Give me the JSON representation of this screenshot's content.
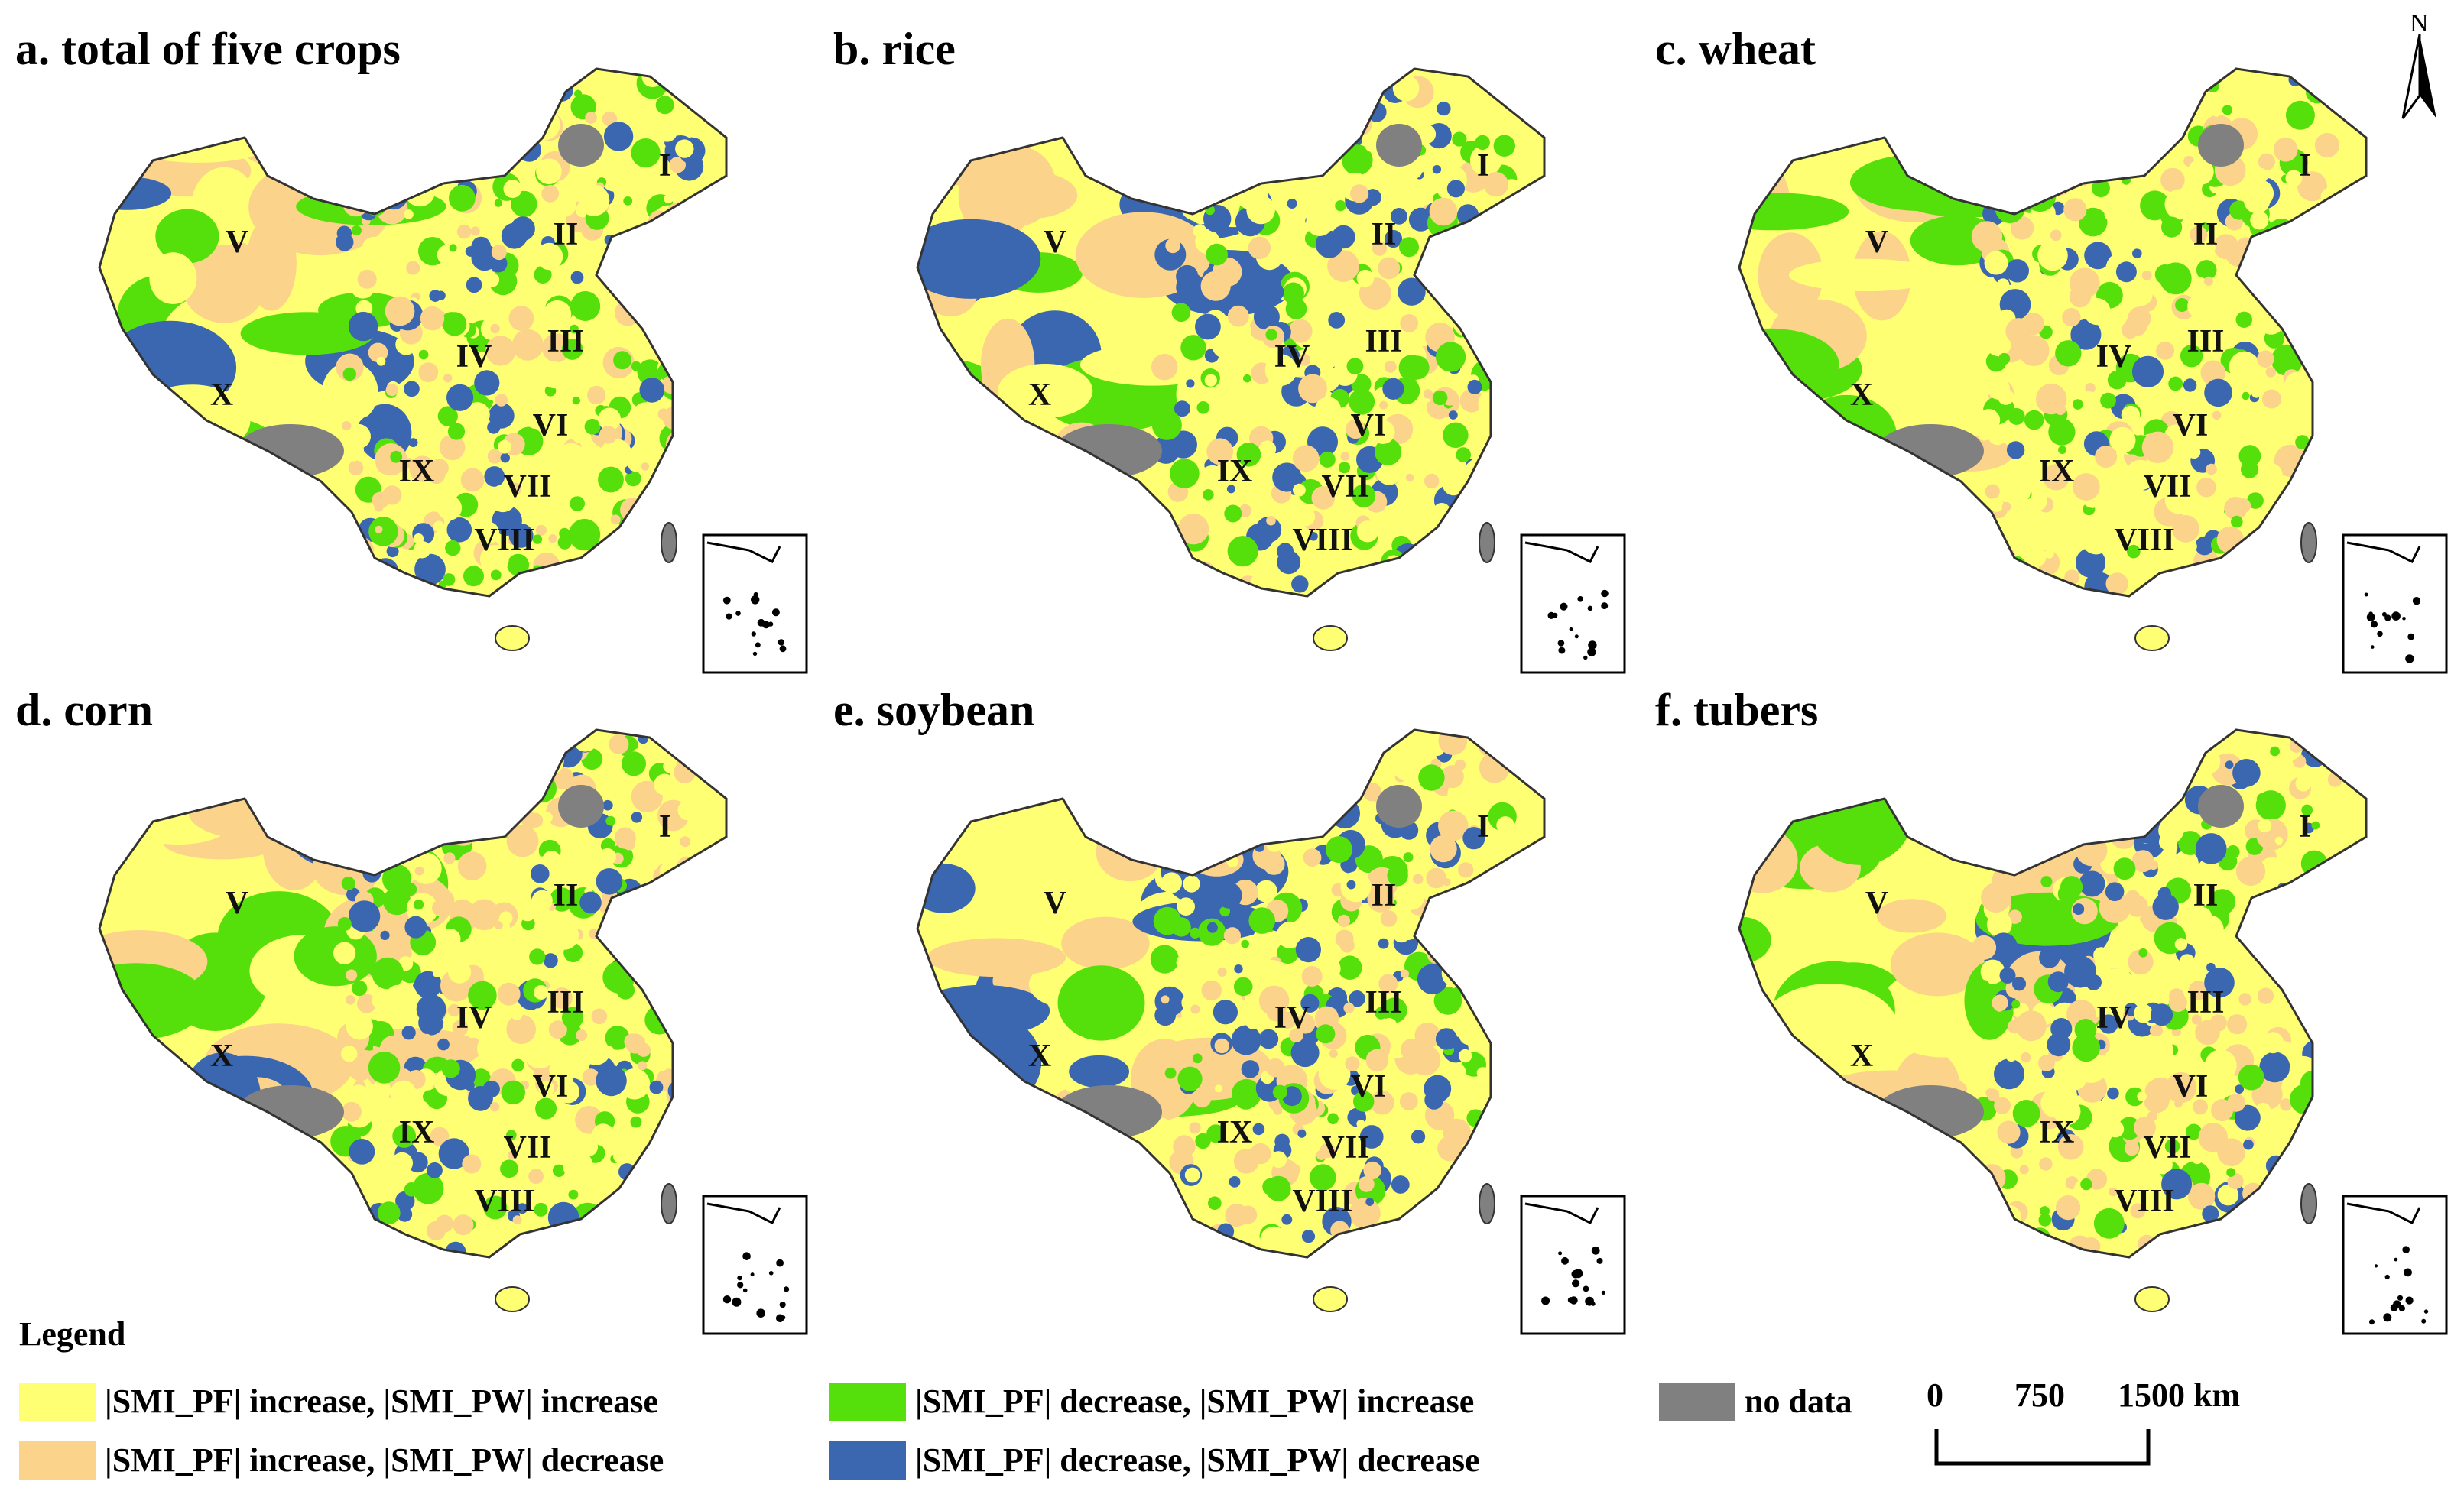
{
  "panels": [
    {
      "title": "a. total of five crops"
    },
    {
      "title": "b. rice"
    },
    {
      "title": "c. wheat"
    },
    {
      "title": "d. corn"
    },
    {
      "title": "e. soybean"
    },
    {
      "title": "f. tubers"
    }
  ],
  "region_labels": [
    "I",
    "II",
    "III",
    "IV",
    "V",
    "VI",
    "VII",
    "VIII",
    "IX",
    "X"
  ],
  "north": {
    "label": "N",
    "icon": "north-arrow-icon"
  },
  "legend": {
    "title": "Legend",
    "items": [
      {
        "label": "|SMI_PF| increase, |SMI_PW| increase",
        "color": "#ffff73"
      },
      {
        "label": "|SMI_PF| increase, |SMI_PW| decrease",
        "color": "#fbd38b"
      },
      {
        "label": "|SMI_PF| decrease, |SMI_PW| increase",
        "color": "#55e00c"
      },
      {
        "label": "|SMI_PF| decrease, |SMI_PW| decrease",
        "color": "#3a67b0"
      },
      {
        "label": "no data",
        "color": "#808080"
      }
    ]
  },
  "scale": {
    "ticks": [
      "0",
      "750",
      "1500 km"
    ]
  },
  "colors": {
    "inc_inc": "#ffff73",
    "inc_dec": "#fbd38b",
    "dec_inc": "#55e00c",
    "dec_dec": "#3a67b0",
    "no_data": "#808080",
    "border": "#333333"
  }
}
